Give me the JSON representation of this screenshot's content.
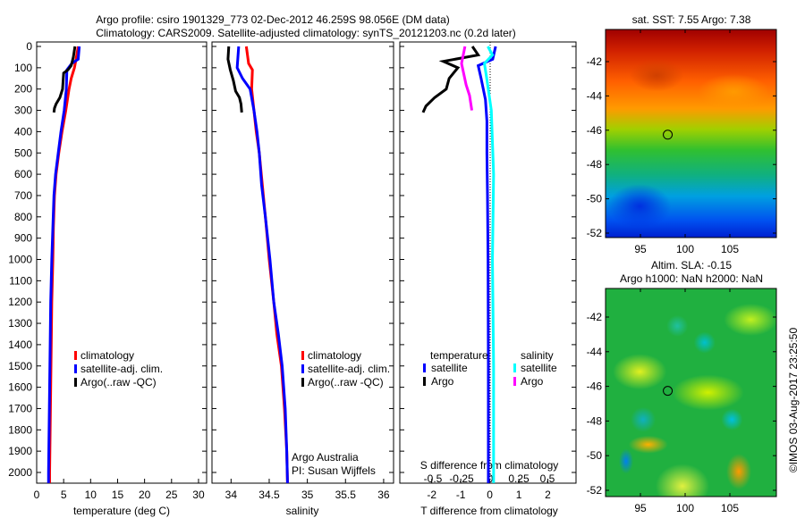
{
  "title": {
    "line1": "Argo profile: csiro 1901329_773 02-Dec-2012 46.259S 98.056E (DM data)",
    "line2": "Climatology: CARS2009. Satellite-adjusted climatology: synTS_20121203.nc (0.2d later)"
  },
  "colors": {
    "climatology": "#ff0000",
    "satellite": "#0000ff",
    "argo": "#000000",
    "sal_satellite": "#00ffff",
    "sal_argo": "#ff00ff"
  },
  "chart_data": [
    {
      "type": "line",
      "name": "temperature",
      "xlabel": "temperature (deg C)",
      "ylabel": "depth",
      "xlim": [
        0,
        31.5
      ],
      "ylim": [
        2050,
        0
      ],
      "xticks": [
        "0",
        "5",
        "10",
        "15",
        "20",
        "25",
        "30"
      ],
      "xtick_values": [
        0,
        5,
        10,
        15,
        20,
        25,
        30
      ],
      "yticks": [
        "0",
        "100",
        "200",
        "300",
        "400",
        "500",
        "600",
        "700",
        "800",
        "900",
        "1000",
        "1100",
        "1200",
        "1300",
        "1400",
        "1500",
        "1600",
        "1700",
        "1800",
        "1900",
        "2000"
      ],
      "legend": [
        "climatology",
        "satellite-adj. clim.",
        "Argo(..raw -QC)"
      ],
      "series": [
        {
          "name": "climatology",
          "color": "#ff0000",
          "points": [
            [
              7.7,
              0
            ],
            [
              7.3,
              60
            ],
            [
              7,
              100
            ],
            [
              6.4,
              150
            ],
            [
              6,
              200
            ],
            [
              5.4,
              300
            ],
            [
              4.7,
              400
            ],
            [
              4.1,
              500
            ],
            [
              3.6,
              600
            ],
            [
              3.3,
              700
            ],
            [
              3.1,
              850
            ],
            [
              3,
              1000
            ],
            [
              2.8,
              1200
            ],
            [
              2.7,
              1400
            ],
            [
              2.6,
              1600
            ],
            [
              2.5,
              1800
            ],
            [
              2.4,
              2000
            ],
            [
              2.4,
              2050
            ]
          ]
        },
        {
          "name": "satellite-adj. clim.",
          "color": "#0000ff",
          "points": [
            [
              7.9,
              0
            ],
            [
              7.7,
              60
            ],
            [
              6.5,
              80
            ],
            [
              5.6,
              110
            ],
            [
              5.5,
              200
            ],
            [
              5.1,
              300
            ],
            [
              4.5,
              400
            ],
            [
              4,
              500
            ],
            [
              3.5,
              600
            ],
            [
              3.2,
              700
            ],
            [
              3,
              850
            ],
            [
              2.8,
              1000
            ],
            [
              2.6,
              1200
            ],
            [
              2.5,
              1400
            ],
            [
              2.4,
              1600
            ],
            [
              2.3,
              1800
            ],
            [
              2.2,
              2000
            ],
            [
              2.2,
              2050
            ]
          ]
        },
        {
          "name": "Argo(..raw -QC)",
          "color": "#000000",
          "points": [
            [
              7.1,
              0
            ],
            [
              6.8,
              50
            ],
            [
              6.4,
              90
            ],
            [
              5.8,
              110
            ],
            [
              5,
              125
            ],
            [
              4.8,
              200
            ],
            [
              4.3,
              240
            ],
            [
              3.6,
              270
            ],
            [
              3.3,
              290
            ],
            [
              3.2,
              310
            ]
          ]
        }
      ]
    },
    {
      "type": "line",
      "name": "salinity",
      "xlabel": "salinity",
      "xlim": [
        33.75,
        36.13
      ],
      "ylim": [
        2050,
        0
      ],
      "xticks": [
        "34",
        "34.5",
        "35",
        "35.5",
        "36"
      ],
      "xtick_values": [
        34,
        34.5,
        35,
        35.5,
        36
      ],
      "legend": [
        "climatology",
        "satellite-adj. clim.",
        "Argo(..raw -QC)"
      ],
      "annotation": [
        "Argo Australia",
        "PI: Susan Wijffels"
      ],
      "series": [
        {
          "name": "climatology",
          "color": "#ff0000",
          "points": [
            [
              34.2,
              0
            ],
            [
              34.23,
              80
            ],
            [
              34.28,
              110
            ],
            [
              34.27,
              200
            ],
            [
              34.3,
              300
            ],
            [
              34.33,
              400
            ],
            [
              34.37,
              500
            ],
            [
              34.41,
              650
            ],
            [
              34.45,
              800
            ],
            [
              34.5,
              1000
            ],
            [
              34.56,
              1200
            ],
            [
              34.6,
              1350
            ],
            [
              34.66,
              1500
            ],
            [
              34.7,
              1700
            ],
            [
              34.73,
              1900
            ],
            [
              34.74,
              2050
            ]
          ]
        },
        {
          "name": "satellite-adj. clim.",
          "color": "#0000ff",
          "points": [
            [
              34.1,
              0
            ],
            [
              34.08,
              100
            ],
            [
              34.15,
              150
            ],
            [
              34.25,
              200
            ],
            [
              34.3,
              300
            ],
            [
              34.34,
              400
            ],
            [
              34.37,
              500
            ],
            [
              34.4,
              650
            ],
            [
              34.45,
              800
            ],
            [
              34.51,
              1000
            ],
            [
              34.56,
              1200
            ],
            [
              34.62,
              1350
            ],
            [
              34.67,
              1500
            ],
            [
              34.71,
              1700
            ],
            [
              34.73,
              1900
            ],
            [
              34.74,
              2050
            ]
          ]
        },
        {
          "name": "Argo(..raw -QC)",
          "color": "#000000",
          "points": [
            [
              33.97,
              0
            ],
            [
              33.96,
              60
            ],
            [
              33.99,
              110
            ],
            [
              34.03,
              160
            ],
            [
              34.06,
              210
            ],
            [
              34.11,
              240
            ],
            [
              34.13,
              270
            ],
            [
              34.14,
              310
            ]
          ]
        }
      ]
    },
    {
      "type": "line",
      "name": "difference",
      "xlabel": "T difference from climatology",
      "x2label": "S difference from climatology",
      "xlim": [
        -3.1,
        2.97
      ],
      "ylim": [
        2050,
        0
      ],
      "xticks": [
        "-2",
        "-1",
        "0",
        "1",
        "2"
      ],
      "xtick_values": [
        -2,
        -1,
        0,
        1,
        2
      ],
      "x2ticks": [
        "-0.5",
        "-0.25",
        "0",
        "0.25",
        "0.5"
      ],
      "x2tick_values": [
        -0.5,
        -0.25,
        0,
        0.25,
        0.5
      ],
      "legend": {
        "temperature": "temperature",
        "salinity": "salinity",
        "t_items": [
          "satellite",
          "Argo"
        ],
        "s_items": [
          "satellite",
          "Argo"
        ]
      },
      "series": [
        {
          "name": "T satellite",
          "color": "#0000ff",
          "axis": "T",
          "points": [
            [
              0.2,
              0
            ],
            [
              0.1,
              60
            ],
            [
              -0.4,
              90
            ],
            [
              -0.3,
              150
            ],
            [
              -0.15,
              250
            ],
            [
              -0.1,
              350
            ],
            [
              -0.1,
              500
            ],
            [
              -0.08,
              700
            ],
            [
              -0.06,
              1000
            ],
            [
              -0.05,
              1500
            ],
            [
              -0.05,
              2050
            ]
          ]
        },
        {
          "name": "T Argo",
          "color": "#000000",
          "axis": "T",
          "points": [
            [
              -0.6,
              0
            ],
            [
              -0.4,
              40
            ],
            [
              -1.6,
              70
            ],
            [
              -1.1,
              100
            ],
            [
              -1.4,
              150
            ],
            [
              -1.5,
              200
            ],
            [
              -1.9,
              240
            ],
            [
              -2.2,
              280
            ],
            [
              -2.3,
              310
            ]
          ]
        },
        {
          "name": "S satellite",
          "color": "#00ffff",
          "axis": "S",
          "points": [
            [
              -0.02,
              0
            ],
            [
              0.02,
              40
            ],
            [
              -0.05,
              80
            ],
            [
              -0.03,
              150
            ],
            [
              0.01,
              300
            ],
            [
              0.03,
              600
            ],
            [
              0.02,
              1000
            ],
            [
              0.03,
              1500
            ],
            [
              0.03,
              2050
            ]
          ]
        },
        {
          "name": "S Argo",
          "color": "#ff00ff",
          "axis": "S",
          "points": [
            [
              -0.22,
              0
            ],
            [
              -0.25,
              80
            ],
            [
              -0.21,
              180
            ],
            [
              -0.18,
              230
            ],
            [
              -0.16,
              300
            ]
          ]
        }
      ]
    },
    {
      "type": "heatmap",
      "name": "sst-map",
      "title": "sat. SST: 7.55 Argo: 7.38",
      "xlim": [
        91.1,
        105.3
      ],
      "ylim": [
        -52.3,
        -40.1
      ],
      "xticks": [
        "95",
        "100",
        "105"
      ],
      "xtick_values": [
        95,
        100,
        105
      ],
      "yticks": [
        "-42",
        "-44",
        "-46",
        "-48",
        "-50",
        "-52"
      ],
      "ytick_values": [
        -42,
        -44,
        -46,
        -48,
        -50,
        -52
      ],
      "marker": [
        98.056,
        -46.259
      ]
    },
    {
      "type": "heatmap",
      "name": "sla-map",
      "title": "Altim. SLA: -0.15",
      "subtitle": "Argo h1000: NaN h2000: NaN",
      "xlim": [
        91.1,
        105.3
      ],
      "ylim": [
        -52.3,
        -40.2
      ],
      "xticks": [
        "95",
        "100",
        "105"
      ],
      "xtick_values": [
        95,
        100,
        105
      ],
      "yticks": [
        "-42",
        "-44",
        "-46",
        "-48",
        "-50",
        "-52"
      ],
      "ytick_values": [
        -42,
        -44,
        -46,
        -48,
        -50,
        -52
      ],
      "marker": [
        98.056,
        -46.259
      ]
    }
  ],
  "credit": "©IMOS 03-Aug-2017 23:25:50"
}
